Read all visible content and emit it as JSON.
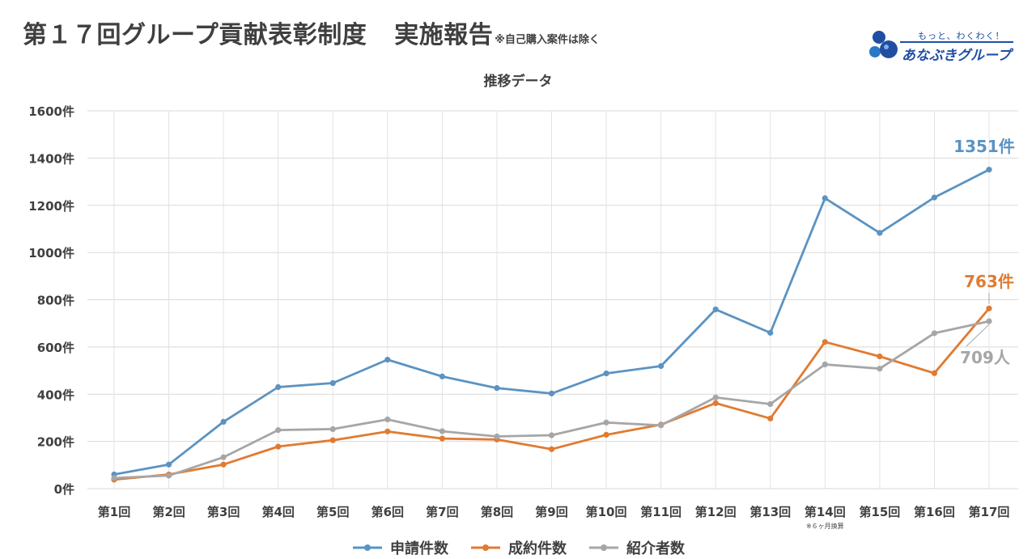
{
  "header": {
    "title_main": "第１７回グループ貢献表彰制度",
    "title_sub": "実施報告",
    "title_note": "※自己購入案件は除く"
  },
  "logo": {
    "tagline": "もっと、わくわく！",
    "name": "あなぶきグループ",
    "color": "#1f4ea3"
  },
  "chart_data": {
    "type": "line",
    "title": "推移データ",
    "categories": [
      "第1回",
      "第2回",
      "第3回",
      "第4回",
      "第5回",
      "第6回",
      "第7回",
      "第8回",
      "第9回",
      "第10回",
      "第11回",
      "第12回",
      "第13回",
      "第14回",
      "第15回",
      "第16回",
      "第17回"
    ],
    "y_ticks": [
      0,
      200,
      400,
      600,
      800,
      1000,
      1200,
      1400,
      1600
    ],
    "y_tick_labels": [
      "0件",
      "200件",
      "400件",
      "600件",
      "800件",
      "1000件",
      "1200件",
      "1400件",
      "1600件"
    ],
    "ylim": [
      0,
      1600
    ],
    "grid": true,
    "legend_position": "bottom",
    "series": [
      {
        "name": "申請件数",
        "color": "#5b93c2",
        "values": [
          60,
          102,
          283,
          430,
          447,
          546,
          475,
          426,
          403,
          488,
          519,
          759,
          660,
          1230,
          1083,
          1233,
          1351
        ],
        "end_label": "1351件"
      },
      {
        "name": "成約件数",
        "color": "#e07b31",
        "values": [
          38,
          60,
          102,
          178,
          205,
          242,
          212,
          208,
          167,
          228,
          271,
          362,
          297,
          621,
          560,
          489,
          763
        ],
        "end_label": "763件"
      },
      {
        "name": "紹介者数",
        "color": "#a6a6a6",
        "values": [
          45,
          55,
          133,
          248,
          252,
          293,
          243,
          221,
          226,
          280,
          268,
          386,
          358,
          526,
          508,
          658,
          709
        ],
        "end_label": "709人"
      }
    ],
    "annotations": [
      {
        "category": "第14回",
        "text": "※６ヶ月換算"
      }
    ]
  }
}
